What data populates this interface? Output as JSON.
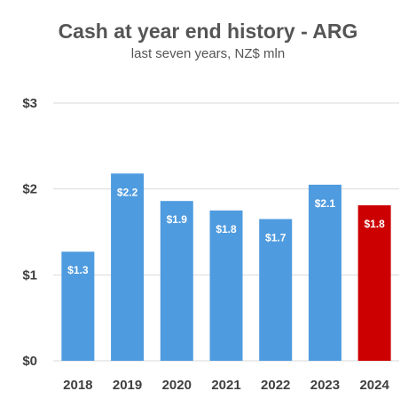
{
  "chart_data": {
    "type": "bar",
    "title": "Cash at year end history - ARG",
    "subtitle": "last seven years, NZ$ mln",
    "categories": [
      "2018",
      "2019",
      "2020",
      "2021",
      "2022",
      "2023",
      "2024"
    ],
    "values": [
      1.27,
      2.18,
      1.86,
      1.75,
      1.65,
      2.05,
      1.81
    ],
    "data_labels": [
      "$1.3",
      "$2.2",
      "$1.9",
      "$1.8",
      "$1.7",
      "$2.1",
      "$1.8"
    ],
    "ylim": [
      0,
      3
    ],
    "yticks": [
      0,
      1,
      2,
      3
    ],
    "ytick_labels": [
      "$0",
      "$1",
      "$2",
      "$3"
    ],
    "xlabel": "",
    "ylabel": "",
    "grid": true,
    "legend": "none",
    "colors": {
      "bar": "#4F9BDF",
      "highlight": "#CC0000",
      "highlight_category": "2024",
      "grid": "#D9D9D9",
      "text": "#404040"
    }
  }
}
